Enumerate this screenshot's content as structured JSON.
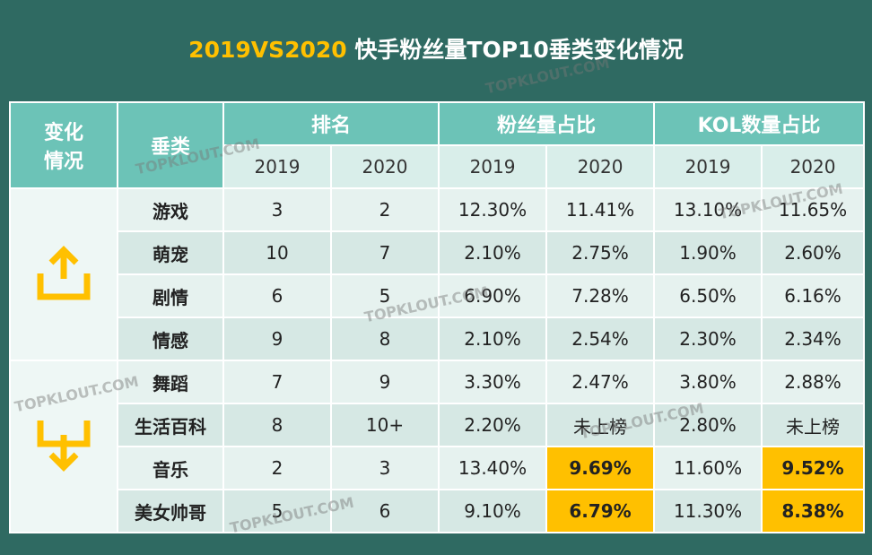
{
  "title": {
    "highlight": "2019VS2020",
    "text": " 快手粉丝量TOP10垂类变化情况"
  },
  "watermark": "TOPKLOUT.COM",
  "table": {
    "header": {
      "change": "变化情况",
      "category": "垂类",
      "groups": [
        "排名",
        "粉丝量占比",
        "KOL数量占比"
      ],
      "years": [
        "2019",
        "2020",
        "2019",
        "2020",
        "2019",
        "2020"
      ]
    },
    "rows": [
      [
        "游戏",
        "3",
        "2",
        "12.30%",
        "11.41%",
        "13.10%",
        "11.65%"
      ],
      [
        "萌宠",
        "10",
        "7",
        "2.10%",
        "2.75%",
        "1.90%",
        "2.60%"
      ],
      [
        "剧情",
        "6",
        "5",
        "6.90%",
        "7.28%",
        "6.50%",
        "6.16%"
      ],
      [
        "情感",
        "9",
        "8",
        "2.10%",
        "2.54%",
        "2.30%",
        "2.34%"
      ],
      [
        "舞蹈",
        "7",
        "9",
        "3.30%",
        "2.47%",
        "3.80%",
        "2.88%"
      ],
      [
        "生活百科",
        "8",
        "10+",
        "2.20%",
        "未上榜",
        "2.80%",
        "未上榜"
      ],
      [
        "音乐",
        "2",
        "3",
        "13.40%",
        "9.69%",
        "11.60%",
        "9.52%"
      ],
      [
        "美女帅哥",
        "5",
        "6",
        "9.10%",
        "6.79%",
        "11.30%",
        "8.38%"
      ]
    ]
  }
}
